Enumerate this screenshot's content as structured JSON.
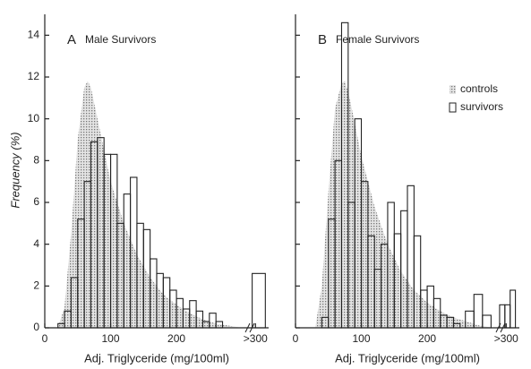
{
  "chart_data": [
    {
      "type": "histogram",
      "panel_label": "A",
      "title": "Male Survivors",
      "x_label": "Adj. Triglyceride (mg/100ml)",
      "y_label": "Frequency (%)",
      "xlim": [
        0,
        340
      ],
      "xticks": [
        0,
        100,
        200,
        {
          "value": 320,
          "label": ">300"
        }
      ],
      "ylim": [
        0,
        15
      ],
      "yticks": [
        0,
        2,
        4,
        6,
        8,
        10,
        12,
        14
      ],
      "tick_labels": true,
      "series": [
        {
          "type": "area",
          "color": "#888888",
          "x": [
            20,
            30,
            40,
            50,
            60,
            65,
            70,
            80,
            90,
            100,
            120,
            140,
            160,
            180,
            200,
            220,
            240,
            260,
            280,
            300
          ],
          "values": [
            0,
            1,
            4.5,
            9,
            11.5,
            11.8,
            11.5,
            10,
            8.5,
            7,
            5,
            3.5,
            2.4,
            1.6,
            1.1,
            0.7,
            0.4,
            0.2,
            0.1,
            0
          ]
        },
        {
          "type": "histogram",
          "color": "#222222",
          "bins": [
            20,
            30,
            40,
            50,
            60,
            70,
            80,
            90,
            100,
            110,
            120,
            130,
            140,
            150,
            160,
            170,
            180,
            190,
            200,
            210,
            220,
            230,
            240,
            250,
            260,
            270,
            315,
            335
          ],
          "values": [
            0.2,
            0.8,
            2.4,
            5.2,
            7.0,
            8.9,
            9.1,
            8.3,
            8.3,
            5.0,
            6.4,
            7.2,
            5.0,
            4.7,
            3.3,
            2.6,
            2.4,
            1.8,
            1.4,
            0.9,
            1.3,
            0.8,
            0.3,
            0.7,
            0.3,
            null,
            2.6
          ]
        }
      ]
    },
    {
      "type": "histogram",
      "panel_label": "B",
      "title": "Female Survivors",
      "x_label": "Adj. Triglyceride (mg/100ml)",
      "xlim": [
        0,
        340
      ],
      "xticks": [
        0,
        100,
        200,
        {
          "value": 320,
          "label": ">300"
        }
      ],
      "ylim": [
        0,
        15
      ],
      "yticks": [
        0,
        2,
        4,
        6,
        8,
        10,
        12,
        14
      ],
      "tick_labels": false,
      "legend": "upper right",
      "series": [
        {
          "type": "area",
          "name": "controls",
          "color": "#888888",
          "x": [
            30,
            40,
            50,
            60,
            70,
            75,
            80,
            90,
            100,
            120,
            140,
            160,
            180,
            200,
            220,
            240,
            260,
            280,
            300
          ],
          "values": [
            0,
            2,
            6.5,
            10.5,
            11.7,
            11.8,
            11.3,
            9.8,
            8.2,
            5.8,
            4,
            2.7,
            1.8,
            1.2,
            0.8,
            0.5,
            0.3,
            0.1,
            0
          ]
        },
        {
          "type": "histogram",
          "name": "survivors",
          "color": "#222222",
          "bins": [
            40,
            50,
            60,
            70,
            80,
            90,
            100,
            110,
            120,
            130,
            140,
            150,
            160,
            170,
            180,
            190,
            200,
            210,
            220,
            230,
            240,
            250,
            258,
            271,
            284,
            297,
            310,
            318,
            326,
            334
          ],
          "values": [
            0.5,
            5.2,
            8.0,
            14.6,
            6.0,
            10.0,
            7.0,
            4.4,
            2.8,
            4.0,
            6.0,
            4.5,
            5.6,
            6.8,
            4.4,
            1.8,
            2.0,
            1.4,
            0.6,
            0.5,
            0.2,
            null,
            0.8,
            1.6,
            0.6,
            null,
            1.1,
            1.1,
            1.8
          ]
        }
      ]
    }
  ]
}
